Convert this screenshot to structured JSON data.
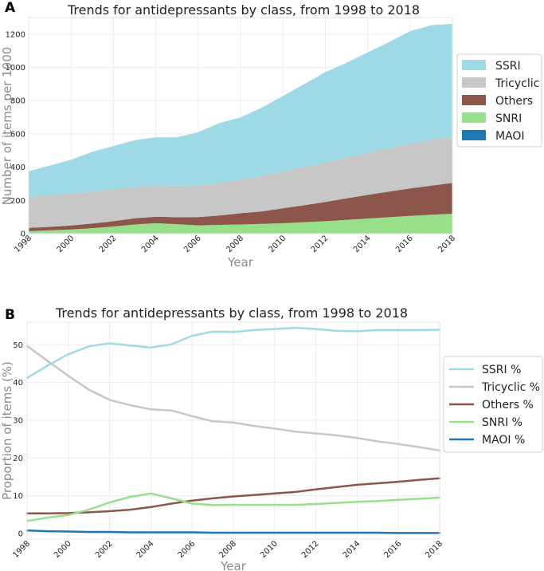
{
  "panels": [
    "A",
    "B"
  ],
  "chart_data": [
    {
      "type": "area",
      "stacked": true,
      "title": "Trends for antidepressants by class, from 1998 to 2018",
      "xlabel": "Year",
      "ylabel": "Number of items per 1000",
      "xlim": [
        1998,
        2018
      ],
      "ylim": [
        0,
        1300
      ],
      "xticks": [
        "1998",
        "2000",
        "2002",
        "2004",
        "2006",
        "2008",
        "2010",
        "2012",
        "2014",
        "2016",
        "2018"
      ],
      "yticks": [
        "0",
        "200",
        "400",
        "600",
        "800",
        "1000",
        "1200"
      ],
      "x": [
        1998,
        1999,
        2000,
        2001,
        2002,
        2003,
        2004,
        2005,
        2006,
        2007,
        2008,
        2009,
        2010,
        2011,
        2012,
        2013,
        2014,
        2015,
        2016,
        2017,
        2018
      ],
      "legend_position": "right",
      "series": [
        {
          "name": "MAOI",
          "color": "#1f77b4",
          "values": [
            3,
            3,
            3,
            3,
            3,
            3,
            3,
            3,
            3,
            3,
            3,
            3,
            3,
            3,
            3,
            3,
            3,
            3,
            3,
            2,
            2
          ]
        },
        {
          "name": "SNRI",
          "color": "#98df8a",
          "values": [
            12,
            17,
            22,
            30,
            40,
            52,
            60,
            54,
            47,
            50,
            52,
            56,
            60,
            66,
            72,
            80,
            88,
            96,
            104,
            112,
            118
          ]
        },
        {
          "name": "Others",
          "color": "#8c564b",
          "values": [
            20,
            21,
            24,
            28,
            32,
            37,
            39,
            42,
            50,
            56,
            68,
            75,
            90,
            102,
            116,
            129,
            142,
            154,
            165,
            175,
            185
          ]
        },
        {
          "name": "Tricyclic",
          "color": "#c7c7c7",
          "values": [
            185,
            190,
            192,
            195,
            191,
            188,
            188,
            190,
            190,
            194,
            202,
            212,
            220,
            228,
            236,
            244,
            252,
            262,
            268,
            276,
            275
          ]
        },
        {
          "name": "SSRI",
          "color": "#9edae5",
          "values": [
            155,
            179,
            203,
            236,
            261,
            282,
            290,
            291,
            320,
            362,
            375,
            412,
            455,
            500,
            545,
            572,
            605,
            637,
            678,
            689,
            682
          ]
        }
      ],
      "legend_order": [
        "SSRI",
        "Tricyclic",
        "Others",
        "SNRI",
        "MAOI"
      ]
    },
    {
      "type": "line",
      "title": "Trends for antidepressants by class, from 1998 to 2018",
      "xlabel": "Year",
      "ylabel": "Proportion of items (%)",
      "xlim": [
        1998,
        2018
      ],
      "ylim": [
        -1.5,
        56
      ],
      "xticks": [
        "1998",
        "2000",
        "2002",
        "2004",
        "2006",
        "2008",
        "2010",
        "2012",
        "2014",
        "2016",
        "2018"
      ],
      "yticks": [
        "0",
        "10",
        "20",
        "30",
        "40",
        "50"
      ],
      "x": [
        1998,
        1999,
        2000,
        2001,
        2002,
        2003,
        2004,
        2005,
        2006,
        2007,
        2008,
        2009,
        2010,
        2011,
        2012,
        2013,
        2014,
        2015,
        2016,
        2017,
        2018
      ],
      "legend_position": "right",
      "series": [
        {
          "name": "SSRI %",
          "color": "#9edae5",
          "values": [
            41.2,
            44.5,
            47.5,
            49.6,
            50.4,
            49.8,
            49.3,
            50.1,
            52.4,
            53.5,
            53.4,
            53.9,
            54.2,
            54.5,
            54.2,
            53.7,
            53.6,
            53.9,
            53.9,
            53.9,
            54.0
          ]
        },
        {
          "name": "Tricyclic %",
          "color": "#c7c7c7",
          "values": [
            49.7,
            45.7,
            41.8,
            38.1,
            35.4,
            34.0,
            32.9,
            32.6,
            31.1,
            29.7,
            29.4,
            28.5,
            27.8,
            27.0,
            26.5,
            26.0,
            25.3,
            24.4,
            23.7,
            22.9,
            22.0
          ]
        },
        {
          "name": "Others %",
          "color": "#8c564b",
          "values": [
            5.3,
            5.3,
            5.4,
            5.6,
            5.9,
            6.3,
            7.0,
            7.9,
            8.7,
            9.3,
            9.8,
            10.2,
            10.6,
            11.0,
            11.7,
            12.3,
            12.9,
            13.3,
            13.7,
            14.2,
            14.6
          ]
        },
        {
          "name": "SNRI %",
          "color": "#98df8a",
          "values": [
            3.3,
            4.2,
            4.9,
            6.3,
            8.2,
            9.7,
            10.6,
            9.3,
            7.9,
            7.5,
            7.6,
            7.6,
            7.6,
            7.6,
            7.8,
            8.1,
            8.4,
            8.6,
            8.9,
            9.2,
            9.5
          ]
        },
        {
          "name": "MAOI %",
          "color": "#1f77b4",
          "values": [
            0.8,
            0.6,
            0.5,
            0.4,
            0.4,
            0.3,
            0.3,
            0.3,
            0.3,
            0.2,
            0.2,
            0.2,
            0.2,
            0.2,
            0.2,
            0.2,
            0.2,
            0.2,
            0.1,
            0.1,
            0.1
          ]
        }
      ]
    }
  ]
}
